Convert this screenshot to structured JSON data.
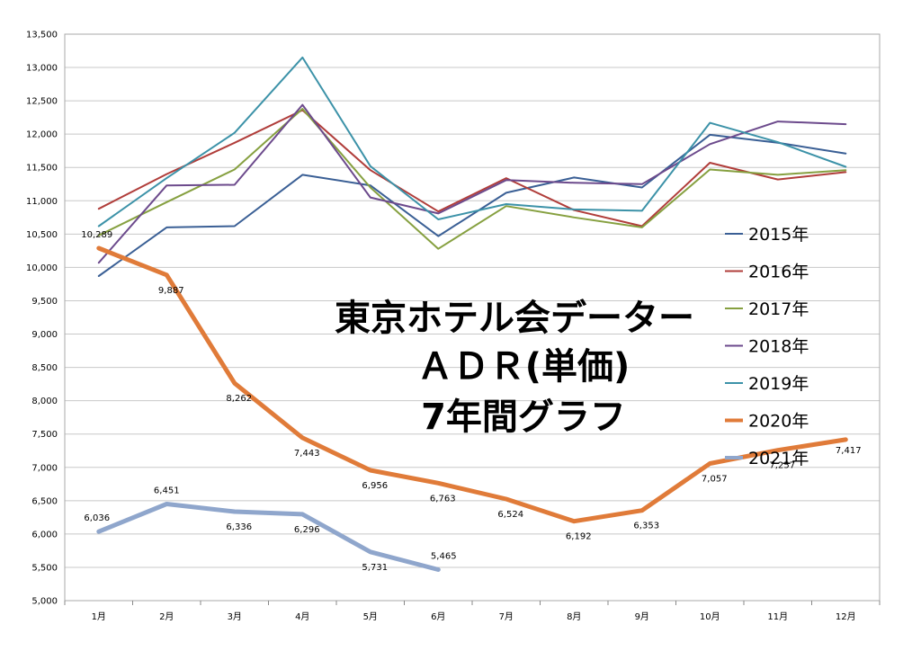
{
  "chart_data": {
    "type": "line",
    "title": [
      "東京ホテル会データー",
      "ＡＤＲ(単価)",
      "7年間グラフ"
    ],
    "categories": [
      "1月",
      "2月",
      "3月",
      "4月",
      "5月",
      "6月",
      "7月",
      "8月",
      "9月",
      "10月",
      "11月",
      "12月"
    ],
    "ylim": [
      5000,
      13500
    ],
    "yticks": [
      5000,
      5500,
      6000,
      6500,
      7000,
      7500,
      8000,
      8500,
      9000,
      9500,
      10000,
      10500,
      11000,
      11500,
      12000,
      12500,
      13000,
      13500
    ],
    "ytick_labels": [
      "5,000",
      "5,500",
      "6,000",
      "6,500",
      "7,000",
      "7,500",
      "8,000",
      "8,500",
      "9,000",
      "9,500",
      "10,000",
      "10,500",
      "11,000",
      "11,500",
      "12,000",
      "12,500",
      "13,000",
      "13,500"
    ],
    "grid": "horizontal",
    "legend_position": "right",
    "series": [
      {
        "name": "2015年",
        "color": "#3a5f95",
        "width": 2,
        "values": [
          9870,
          10600,
          10620,
          11390,
          11230,
          10470,
          11120,
          11350,
          11200,
          11990,
          11870,
          11710
        ]
      },
      {
        "name": "2016年",
        "color": "#b03d3a",
        "width": 2,
        "values": [
          10880,
          11400,
          11870,
          12360,
          11460,
          10840,
          11340,
          10860,
          10620,
          11570,
          11320,
          11430
        ]
      },
      {
        "name": "2017年",
        "color": "#86a040",
        "width": 2,
        "values": [
          10480,
          10980,
          11470,
          12380,
          11200,
          10280,
          10920,
          10750,
          10600,
          11470,
          11390,
          11460
        ]
      },
      {
        "name": "2018年",
        "color": "#6c4a8c",
        "width": 2,
        "values": [
          10070,
          11230,
          11240,
          12440,
          11050,
          10810,
          11310,
          11270,
          11250,
          11850,
          12190,
          12150
        ]
      },
      {
        "name": "2019年",
        "color": "#3c92a8",
        "width": 2,
        "values": [
          10620,
          11340,
          12020,
          13150,
          11520,
          10720,
          10950,
          10870,
          10850,
          12170,
          11880,
          11510
        ]
      },
      {
        "name": "2020年",
        "color": "#e07b39",
        "width": 5,
        "values": [
          10289,
          9887,
          8262,
          7443,
          6956,
          6763,
          6524,
          6192,
          6353,
          7057,
          7257,
          7417
        ],
        "labels": [
          "10,289",
          "9,887",
          "8,262",
          "7,443",
          "6,956",
          "6,763",
          "6,524",
          "6,192",
          "6,353",
          "7,057",
          "7,257",
          "7,417"
        ]
      },
      {
        "name": "2021年",
        "color": "#8fa6cc",
        "width": 5,
        "values": [
          6036,
          6451,
          6336,
          6296,
          5731,
          5465,
          null,
          null,
          null,
          null,
          null,
          null
        ],
        "labels": [
          "6,036",
          "6,451",
          "6,336",
          "6,296",
          "5,731",
          "5,465"
        ]
      }
    ]
  }
}
